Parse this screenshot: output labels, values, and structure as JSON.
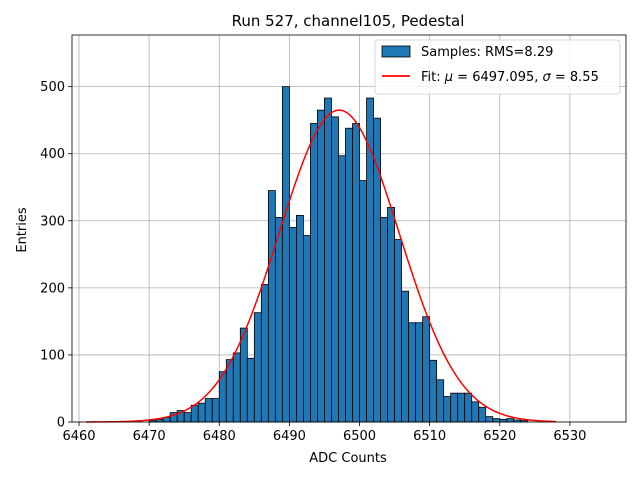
{
  "chart_data": {
    "type": "bar",
    "title": "Run 527, channel105, Pedestal",
    "xlabel": "ADC Counts",
    "ylabel": "Entries",
    "xlim": [
      6459,
      6538
    ],
    "ylim": [
      0,
      577
    ],
    "grid": true,
    "legend_placement": "top-right",
    "x_ticks": [
      6460,
      6470,
      6480,
      6490,
      6500,
      6510,
      6520,
      6530
    ],
    "y_ticks": [
      0,
      100,
      200,
      300,
      400,
      500
    ],
    "histogram": {
      "name": "Samples: RMS=8.29",
      "color": "#1f77b4",
      "bin_width": 1,
      "bins_start": [
        6470,
        6471,
        6472,
        6473,
        6474,
        6475,
        6476,
        6477,
        6478,
        6479,
        6480,
        6481,
        6482,
        6483,
        6484,
        6485,
        6486,
        6487,
        6488,
        6489,
        6490,
        6491,
        6492,
        6493,
        6494,
        6495,
        6496,
        6497,
        6498,
        6499,
        6500,
        6501,
        6502,
        6503,
        6504,
        6505,
        6506,
        6507,
        6508,
        6509,
        6510,
        6511,
        6512,
        6513,
        6514,
        6515,
        6516,
        6517,
        6518,
        6519,
        6520,
        6521,
        6522,
        6523
      ],
      "counts": [
        2,
        4,
        7,
        14,
        17,
        14,
        25,
        28,
        35,
        35,
        75,
        93,
        103,
        140,
        95,
        163,
        205,
        345,
        305,
        500,
        290,
        308,
        278,
        445,
        465,
        483,
        455,
        397,
        438,
        445,
        360,
        483,
        453,
        305,
        320,
        272,
        195,
        148,
        148,
        157,
        92,
        63,
        38,
        43,
        43,
        43,
        30,
        22,
        8,
        5,
        4,
        5,
        3,
        2
      ]
    },
    "fit": {
      "name": "Fit: μ = 6497.095, σ = 8.55",
      "label_prefix": "Fit: ",
      "mu_symbol": "μ",
      "mu_text": " = 6497.095, ",
      "sigma_symbol": "σ",
      "sigma_text": " = 8.55",
      "color": "#ff0000",
      "mu": 6497.095,
      "sigma": 8.55,
      "amplitude": 465,
      "x_range": [
        6461,
        6528
      ]
    }
  }
}
